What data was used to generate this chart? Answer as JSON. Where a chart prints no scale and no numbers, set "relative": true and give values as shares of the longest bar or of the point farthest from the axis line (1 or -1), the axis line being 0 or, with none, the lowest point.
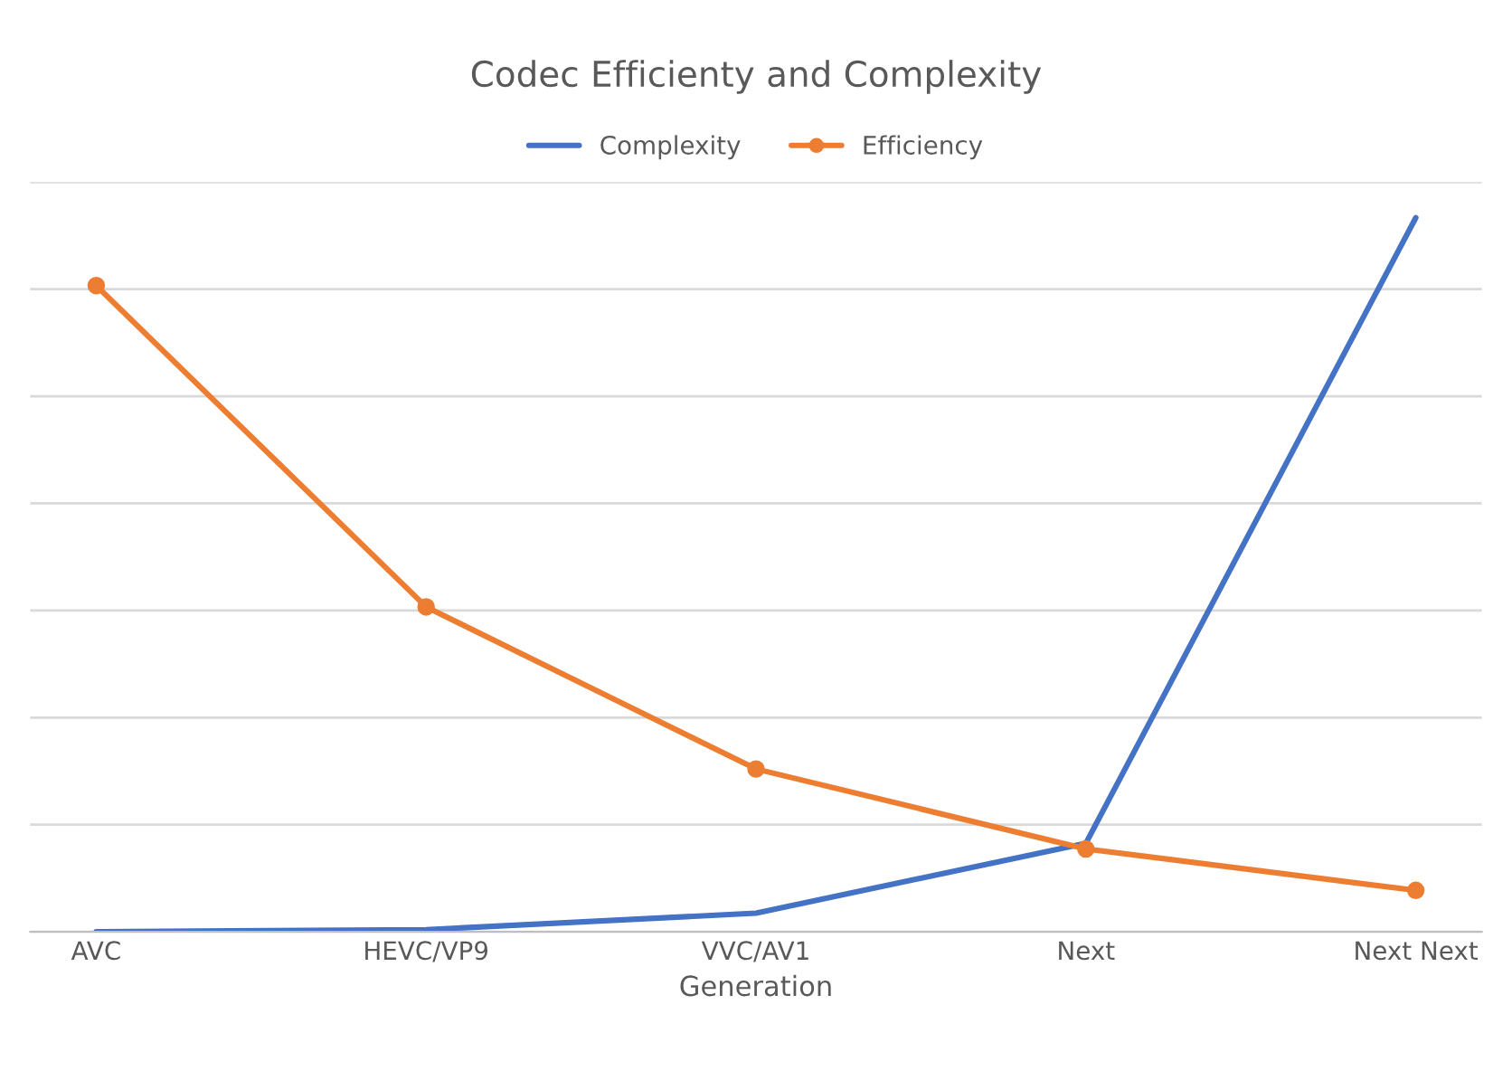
{
  "chart_data": {
    "type": "line",
    "title": "Codec Efficienty and Complexity",
    "xlabel": "Generation",
    "categories": [
      "AVC",
      "HEVC/VP9",
      "VVC/AV1",
      "Next",
      "Next Next"
    ],
    "relative": true,
    "grid": "y",
    "legend": "top",
    "series": [
      {
        "name": "Complexity",
        "color": "#4472c4",
        "values": [
          0,
          0.003,
          0.026,
          0.124,
          1
        ],
        "marker": "none"
      },
      {
        "name": "Efficiency",
        "color": "#ed7d31",
        "values": [
          0.905,
          0.455,
          0.228,
          0.116,
          0.058
        ],
        "marker": "circle"
      }
    ]
  }
}
